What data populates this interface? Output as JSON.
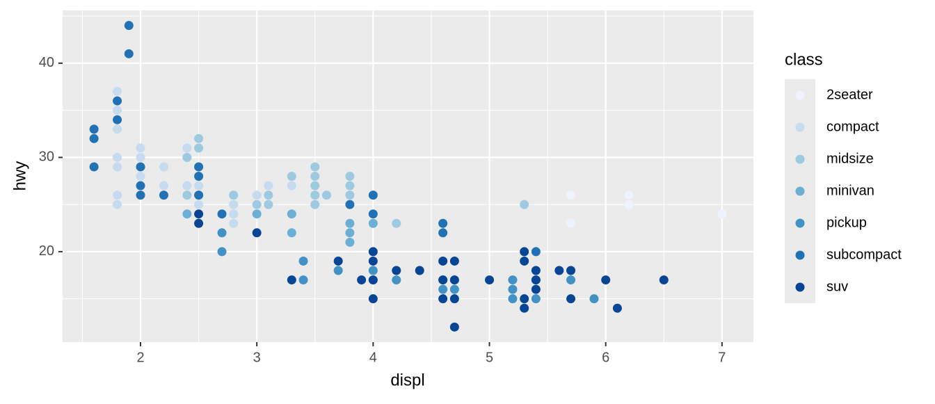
{
  "chart_data": {
    "type": "scatter",
    "x_label": "displ",
    "y_label": "hwy",
    "legend_title": "class",
    "xlim": [
      1.33,
      7.27
    ],
    "ylim": [
      10.4,
      45.6
    ],
    "xticks": [
      2,
      3,
      4,
      5,
      6,
      7
    ],
    "yticks": [
      20,
      30,
      40
    ],
    "x_minor_grid": [
      1.5,
      2.5,
      3.5,
      4.5,
      5.5,
      6.5
    ],
    "y_minor_grid": [
      15,
      25,
      35,
      45
    ],
    "grid": true,
    "legend": "right",
    "series": [
      {
        "name": "2seater",
        "color": "#eff3ff",
        "x": [
          5.7,
          5.7,
          6.2,
          6.2,
          7.0
        ],
        "values": [
          26,
          23,
          26,
          25,
          24
        ]
      },
      {
        "name": "compact",
        "color": "#c6dbef",
        "x": [
          1.8,
          1.8,
          2.0,
          2.0,
          2.8,
          2.8,
          3.1,
          1.8,
          1.8,
          2.0,
          2.8,
          2.8,
          2.4,
          2.4,
          2.2,
          2.2,
          2.4,
          3.0,
          3.3,
          1.8,
          1.8,
          1.8,
          2.5,
          2.5,
          2.8,
          2.0
        ],
        "values": [
          29,
          30,
          31,
          30,
          26,
          24,
          27,
          26,
          25,
          28,
          25,
          23,
          27,
          30,
          29,
          27,
          31,
          26,
          27,
          37,
          35,
          33,
          27,
          25,
          24,
          29
        ]
      },
      {
        "name": "midsize",
        "color": "#9ecae1",
        "x": [
          2.5,
          2.5,
          2.4,
          2.8,
          3.0,
          3.3,
          3.5,
          3.5,
          3.5,
          3.5,
          3.5,
          3.6,
          3.8,
          3.8,
          3.8,
          4.2,
          5.3,
          3.1,
          3.1,
          2.4,
          2.5
        ],
        "values": [
          32,
          31,
          30,
          26,
          25,
          28,
          29,
          28,
          27,
          26,
          25,
          26,
          28,
          27,
          26,
          23,
          25,
          26,
          25,
          26,
          26
        ]
      },
      {
        "name": "minivan",
        "color": "#6baed6",
        "x": [
          2.4,
          3.0,
          3.3,
          3.3,
          3.8,
          3.8,
          3.8,
          4.0
        ],
        "values": [
          24,
          24,
          24,
          22,
          22,
          21,
          23,
          23
        ]
      },
      {
        "name": "pickup",
        "color": "#4292c6",
        "x": [
          2.7,
          2.7,
          3.4,
          3.4,
          3.7,
          4.0,
          4.2,
          4.6,
          4.6,
          4.7,
          4.7,
          5.2,
          5.2,
          5.2,
          5.4,
          5.4,
          5.7,
          5.9,
          4.0
        ],
        "values": [
          20,
          22,
          19,
          17,
          18,
          18,
          17,
          17,
          16,
          17,
          16,
          17,
          16,
          15,
          15,
          17,
          17,
          15,
          17
        ]
      },
      {
        "name": "subcompact",
        "color": "#2171b5",
        "x": [
          1.6,
          1.6,
          1.6,
          1.8,
          1.8,
          1.9,
          1.9,
          2.0,
          2.0,
          2.0,
          2.2,
          2.5,
          2.5,
          2.5,
          3.8,
          4.0,
          4.0,
          4.6,
          4.6,
          5.4,
          2.7
        ],
        "values": [
          33,
          32,
          29,
          36,
          34,
          44,
          41,
          29,
          27,
          26,
          26,
          29,
          28,
          26,
          25,
          26,
          24,
          23,
          22,
          20,
          24
        ]
      },
      {
        "name": "suv",
        "color": "#084594",
        "x": [
          2.5,
          2.5,
          3.0,
          3.3,
          3.7,
          3.9,
          4.0,
          4.0,
          4.0,
          4.0,
          4.2,
          4.4,
          4.6,
          4.6,
          4.6,
          4.7,
          4.7,
          4.7,
          4.7,
          5.0,
          5.3,
          5.3,
          5.3,
          5.3,
          5.4,
          5.4,
          5.4,
          5.6,
          5.7,
          5.7,
          6.1,
          6.0,
          6.5
        ],
        "values": [
          24,
          23,
          22,
          17,
          19,
          17,
          20,
          19,
          17,
          15,
          18,
          18,
          19,
          17,
          15,
          19,
          17,
          15,
          12,
          17,
          20,
          19,
          15,
          14,
          18,
          17,
          16,
          18,
          18,
          15,
          14,
          17,
          17
        ]
      }
    ]
  }
}
